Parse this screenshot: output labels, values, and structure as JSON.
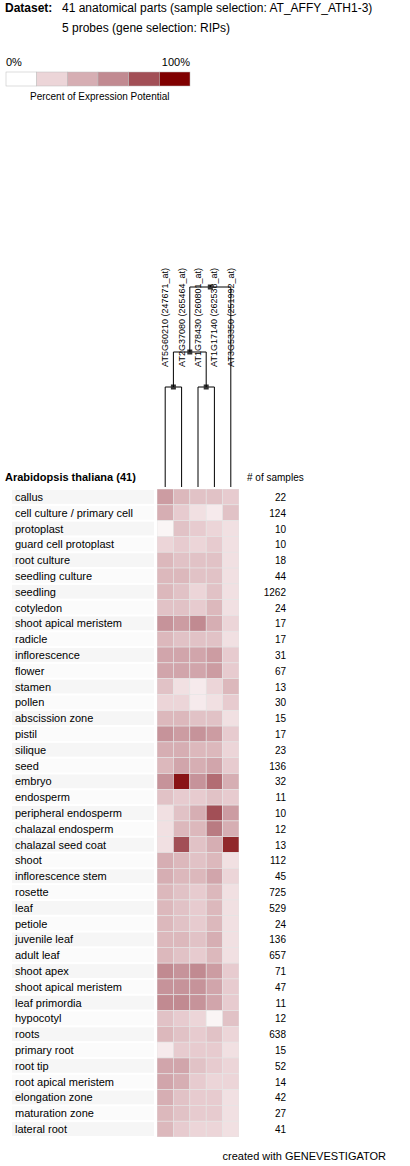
{
  "chart_data": {
    "type": "heatmap",
    "title": [
      "Dataset:",
      "41 anatomical parts (sample selection: AT_AFFY_ATH1-3)"
    ],
    "subtitle": "5 probes (gene selection: RIPs)",
    "colors": [
      "#ffffff",
      "#ecd5d8",
      "#d6aeb3",
      "#c18a91",
      "#a24f56",
      "#800000"
    ],
    "colorbar": {
      "range": [
        0,
        100
      ],
      "ticks": [
        {
          "value": 0,
          "label": "0%"
        },
        {
          "value": 100,
          "label": "100%"
        }
      ],
      "label": "Percent of Expression Potential"
    },
    "columns": [
      "AT5G60210 (247671_at)",
      "AT2G37080 (265464_at)",
      "AT1G78430 (260801_at)",
      "AT1G17140 (262538_at)",
      "AT3G53350 (251992_at)"
    ],
    "dendrogram": [
      [
        [
          0,
          1
        ],
        [
          2,
          3
        ]
      ],
      4
    ],
    "row_group_label": "Arabidopsis thaliana (41)",
    "samples_label": "# of samples",
    "rows": [
      "callus",
      "cell culture / primary cell",
      "protoplast",
      "guard cell protoplast",
      "root culture",
      "seedling culture",
      "seedling",
      "cotyledon",
      "shoot apical meristem",
      "radicle",
      "inflorescence",
      "flower",
      "stamen",
      "pollen",
      "abscission zone",
      "pistil",
      "silique",
      "seed",
      "embryo",
      "endosperm",
      "peripheral endosperm",
      "chalazal endosperm",
      "chalazal seed coat",
      "shoot",
      "inflorescence stem",
      "rosette",
      "leaf",
      "petiole",
      "juvenile leaf",
      "adult leaf",
      "shoot apex",
      "shoot apical meristem",
      "leaf primordia",
      "hypocotyl",
      "roots",
      "primary root",
      "root tip",
      "root apical meristem",
      "elongation zone",
      "maturation zone",
      "lateral root"
    ],
    "samples": [
      22,
      124,
      10,
      10,
      18,
      44,
      1262,
      24,
      17,
      17,
      31,
      67,
      13,
      30,
      15,
      17,
      23,
      136,
      32,
      11,
      10,
      12,
      13,
      112,
      45,
      725,
      529,
      24,
      136,
      657,
      71,
      47,
      11,
      12,
      638,
      15,
      52,
      14,
      42,
      27,
      41
    ],
    "cells": [
      [
        50,
        35,
        30,
        30,
        25
      ],
      [
        40,
        25,
        15,
        10,
        30
      ],
      [
        5,
        30,
        25,
        20,
        15
      ],
      [
        20,
        25,
        20,
        25,
        15
      ],
      [
        35,
        30,
        30,
        30,
        15
      ],
      [
        35,
        35,
        30,
        30,
        15
      ],
      [
        35,
        30,
        20,
        30,
        15
      ],
      [
        30,
        30,
        25,
        35,
        15
      ],
      [
        55,
        50,
        60,
        40,
        20
      ],
      [
        35,
        30,
        30,
        30,
        15
      ],
      [
        45,
        45,
        45,
        50,
        25
      ],
      [
        45,
        45,
        45,
        50,
        25
      ],
      [
        30,
        15,
        10,
        20,
        35
      ],
      [
        20,
        20,
        10,
        15,
        25
      ],
      [
        35,
        35,
        30,
        30,
        15
      ],
      [
        55,
        50,
        55,
        50,
        25
      ],
      [
        40,
        40,
        35,
        35,
        20
      ],
      [
        35,
        45,
        40,
        45,
        25
      ],
      [
        55,
        95,
        55,
        70,
        40
      ],
      [
        30,
        25,
        25,
        30,
        25
      ],
      [
        15,
        30,
        40,
        80,
        50
      ],
      [
        15,
        35,
        35,
        65,
        40
      ],
      [
        15,
        80,
        30,
        40,
        90
      ],
      [
        40,
        35,
        30,
        35,
        15
      ],
      [
        40,
        35,
        35,
        45,
        20
      ],
      [
        35,
        30,
        25,
        35,
        15
      ],
      [
        35,
        30,
        25,
        35,
        15
      ],
      [
        35,
        30,
        25,
        35,
        15
      ],
      [
        35,
        35,
        30,
        40,
        15
      ],
      [
        35,
        30,
        25,
        35,
        15
      ],
      [
        60,
        55,
        60,
        50,
        25
      ],
      [
        55,
        55,
        55,
        45,
        25
      ],
      [
        60,
        60,
        55,
        45,
        25
      ],
      [
        30,
        25,
        20,
        5,
        30
      ],
      [
        35,
        30,
        25,
        30,
        20
      ],
      [
        10,
        25,
        25,
        25,
        15
      ],
      [
        45,
        45,
        30,
        25,
        20
      ],
      [
        45,
        40,
        25,
        20,
        20
      ],
      [
        40,
        30,
        25,
        25,
        15
      ],
      [
        35,
        30,
        25,
        25,
        15
      ],
      [
        35,
        25,
        20,
        20,
        15
      ]
    ],
    "footer": "created with GENEVESTIGATOR"
  }
}
